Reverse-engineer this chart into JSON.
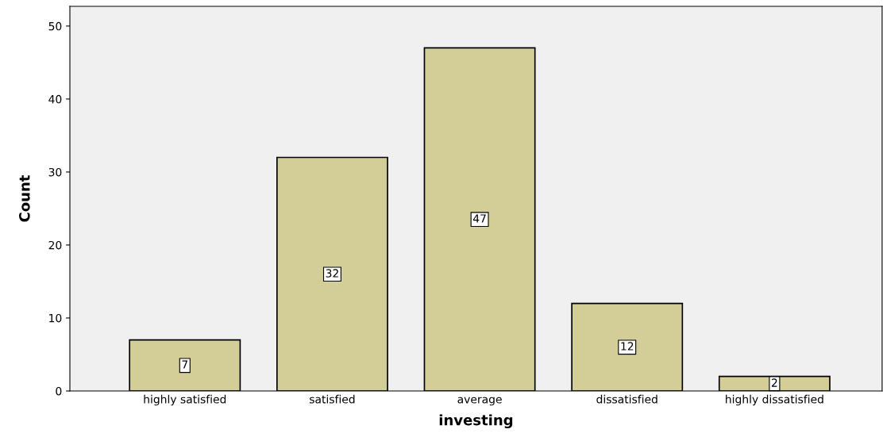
{
  "chart_data": {
    "type": "bar",
    "xlabel": "investing",
    "ylabel": "Count",
    "categories": [
      "highly satisfied",
      "satisfied",
      "average",
      "dissatisfied",
      "highly dissatisfied"
    ],
    "values": [
      7,
      32,
      47,
      12,
      2
    ],
    "color": "#d3ce97",
    "ylim": [
      0,
      52.7
    ],
    "yticks": [
      0,
      10,
      20,
      30,
      40,
      50
    ],
    "grid": false,
    "data_labels": true
  }
}
